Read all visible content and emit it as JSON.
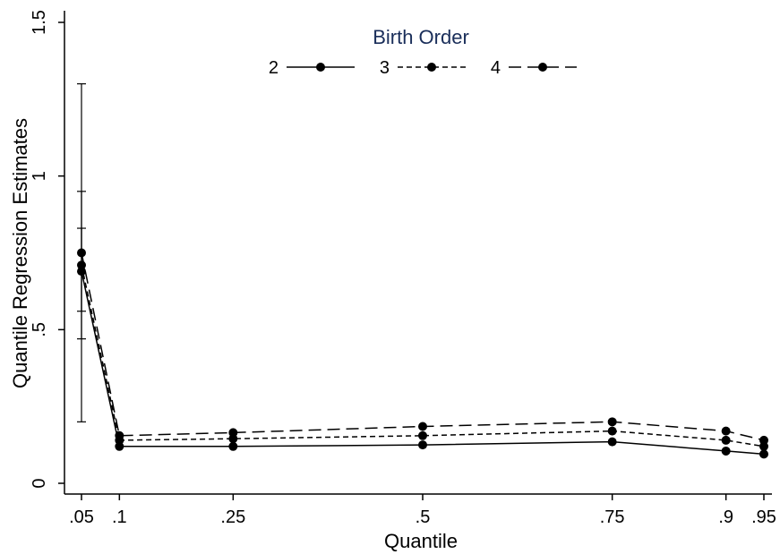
{
  "chart_data": {
    "type": "line",
    "xlabel": "Quantile",
    "ylabel": "Quantile Regression Estimates",
    "xlim": [
      0.05,
      0.95
    ],
    "ylim": [
      0,
      1.5
    ],
    "x": [
      0.05,
      0.1,
      0.25,
      0.5,
      0.75,
      0.9,
      0.95
    ],
    "x_tick_labels": [
      ".05",
      ".1",
      ".25",
      ".5",
      ".75",
      ".9",
      ".95"
    ],
    "y_ticks": [
      0,
      0.5,
      1,
      1.5
    ],
    "y_tick_labels": [
      "0",
      ".5",
      "1",
      "1.5"
    ],
    "legend": {
      "title": "Birth Order",
      "placement": "top-center"
    },
    "series": [
      {
        "name": "2",
        "line_style": "solid",
        "values": [
          0.69,
          0.12,
          0.12,
          0.125,
          0.135,
          0.105,
          0.095
        ],
        "ci_low": [
          0.2,
          null,
          null,
          null,
          null,
          null,
          null
        ],
        "ci_high": [
          1.3,
          null,
          null,
          null,
          null,
          null,
          null
        ]
      },
      {
        "name": "3",
        "line_style": "short-dash",
        "values": [
          0.71,
          0.14,
          0.145,
          0.155,
          0.17,
          0.14,
          0.12
        ],
        "ci_low": [
          0.47,
          null,
          null,
          null,
          null,
          null,
          null
        ],
        "ci_high": [
          0.95,
          null,
          null,
          null,
          null,
          null,
          null
        ]
      },
      {
        "name": "4",
        "line_style": "long-dash",
        "values": [
          0.75,
          0.155,
          0.165,
          0.185,
          0.2,
          0.17,
          0.14
        ],
        "ci_low": [
          0.56,
          null,
          null,
          null,
          null,
          null,
          null
        ],
        "ci_high": [
          0.83,
          null,
          null,
          null,
          null,
          null,
          null
        ]
      }
    ],
    "grid": false
  }
}
